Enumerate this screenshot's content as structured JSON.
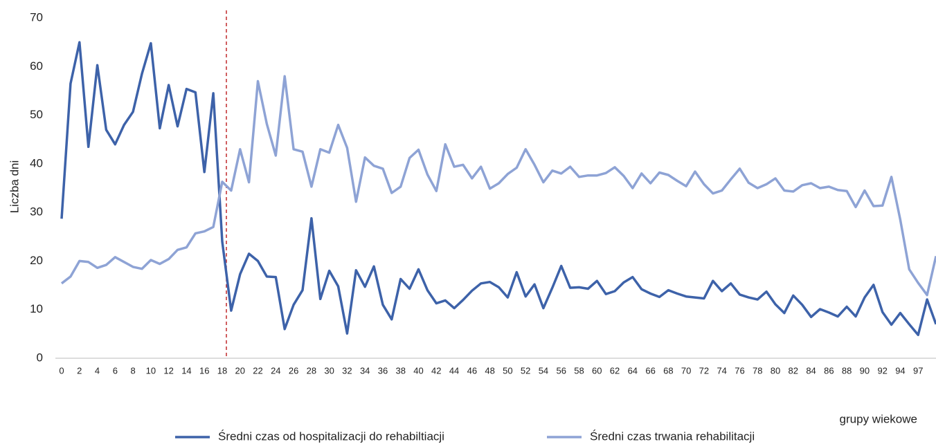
{
  "chart_data": {
    "type": "line",
    "y_label": "Liczba dni",
    "x_label": "grupy wiekowe",
    "categories": [
      "0",
      null,
      "2",
      null,
      "4",
      null,
      "6",
      null,
      "8",
      null,
      "10",
      null,
      "12",
      null,
      "14",
      null,
      "16",
      null,
      "18",
      null,
      "20",
      null,
      "22",
      null,
      "24",
      null,
      "26",
      null,
      "28",
      null,
      "30",
      null,
      "32",
      null,
      "34",
      null,
      "36",
      null,
      "38",
      null,
      "40",
      null,
      "42",
      null,
      "44",
      null,
      "46",
      null,
      "48",
      null,
      "50",
      null,
      "52",
      null,
      "54",
      null,
      "56",
      null,
      "58",
      null,
      "60",
      null,
      "62",
      null,
      "64",
      null,
      "66",
      null,
      "68",
      null,
      "70",
      null,
      "72",
      null,
      "74",
      null,
      "76",
      null,
      "78",
      null,
      "80",
      null,
      "82",
      null,
      "84",
      null,
      "86",
      null,
      "88",
      null,
      "90",
      null,
      "92",
      null,
      "94",
      null,
      "97",
      null,
      null
    ],
    "series": [
      {
        "name": "Średni czas od hospitalizacji do rehabiltiacji",
        "color": "#3d62a9",
        "values": [
          28.7,
          56.5,
          65,
          43.5,
          60.3,
          47,
          44,
          48,
          50.7,
          58.5,
          64.8,
          47.3,
          56.2,
          47.7,
          55.4,
          54.7,
          38.3,
          54.5,
          24,
          9.8,
          17.3,
          21.5,
          20,
          16.8,
          16.7,
          6,
          11,
          14,
          28.8,
          12.2,
          18,
          14.8,
          5.1,
          18.1,
          14.7,
          18.9,
          11,
          8,
          16.3,
          14.3,
          18.3,
          14,
          11.3,
          11.9,
          10.3,
          12,
          13.9,
          15.4,
          15.7,
          14.6,
          12.5,
          17.7,
          12.7,
          15.2,
          10.3,
          14.5,
          19,
          14.5,
          14.6,
          14.3,
          15.9,
          13.2,
          13.8,
          15.6,
          16.7,
          14.2,
          13.3,
          12.6,
          14,
          13.3,
          12.7,
          12.5,
          12.3,
          15.9,
          13.8,
          15.4,
          13.1,
          12.5,
          12.1,
          13.7,
          11.1,
          9.3,
          12.9,
          11,
          8.5,
          10.1,
          9.4,
          8.6,
          10.6,
          8.6,
          12.5,
          15.1,
          9.5,
          6.9,
          9.3,
          7,
          4.8,
          12.1,
          7
        ]
      },
      {
        "name": "Średni czas trwania rehabilitacji",
        "color": "#8ea3d5",
        "values": [
          15.4,
          16.8,
          20,
          19.8,
          18.6,
          19.2,
          20.8,
          19.8,
          18.8,
          18.4,
          20.2,
          19.4,
          20.4,
          22.3,
          22.8,
          25.7,
          26.1,
          27,
          36.3,
          34.5,
          43,
          36.2,
          57,
          48.2,
          41.7,
          58,
          43,
          42.5,
          35.3,
          43,
          42.3,
          48,
          43.3,
          32.2,
          41.3,
          39.6,
          39,
          34,
          35.3,
          41.2,
          42.9,
          37.8,
          34.4,
          44,
          39.4,
          39.8,
          37,
          39.4,
          34.9,
          36,
          37.9,
          39.2,
          43,
          39.8,
          36.2,
          38.6,
          38,
          39.4,
          37.3,
          37.6,
          37.6,
          38.1,
          39.3,
          37.5,
          35,
          38,
          36,
          38.2,
          37.7,
          36.5,
          35.4,
          38.4,
          35.8,
          33.9,
          34.5,
          36.8,
          39,
          36.1,
          35,
          35.8,
          37,
          34.5,
          34.3,
          35.6,
          36,
          35,
          35.3,
          34.6,
          34.4,
          31.1,
          34.5,
          31.3,
          31.4,
          37.3,
          28.5,
          18.3,
          15.5,
          13,
          21
        ]
      }
    ],
    "ylim": [
      0,
      70
    ],
    "yticks": [
      0,
      10,
      20,
      30,
      40,
      50,
      60,
      70
    ],
    "grid": false,
    "reference_line": {
      "category": "18",
      "color": "#c0292b"
    }
  }
}
